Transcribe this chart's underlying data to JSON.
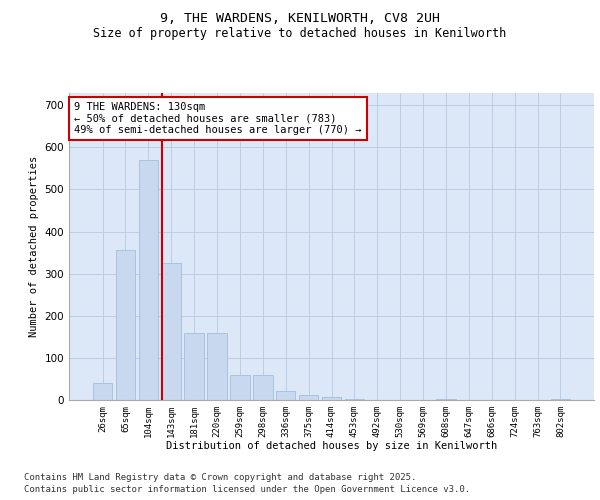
{
  "title_line1": "9, THE WARDENS, KENILWORTH, CV8 2UH",
  "title_line2": "Size of property relative to detached houses in Kenilworth",
  "xlabel": "Distribution of detached houses by size in Kenilworth",
  "ylabel": "Number of detached properties",
  "categories": [
    "26sqm",
    "65sqm",
    "104sqm",
    "143sqm",
    "181sqm",
    "220sqm",
    "259sqm",
    "298sqm",
    "336sqm",
    "375sqm",
    "414sqm",
    "453sqm",
    "492sqm",
    "530sqm",
    "569sqm",
    "608sqm",
    "647sqm",
    "686sqm",
    "724sqm",
    "763sqm",
    "802sqm"
  ],
  "values": [
    40,
    355,
    570,
    325,
    160,
    160,
    60,
    60,
    22,
    12,
    6,
    2,
    0,
    0,
    0,
    2,
    0,
    0,
    0,
    0,
    3
  ],
  "bar_color": "#c8d8ee",
  "bar_edge_color": "#99b8d8",
  "vline_x_index": 3,
  "vline_color": "#cc0000",
  "annotation_text": "9 THE WARDENS: 130sqm\n← 50% of detached houses are smaller (783)\n49% of semi-detached houses are larger (770) →",
  "annotation_box_color": "#ffffff",
  "annotation_box_edge_color": "#cc0000",
  "annotation_fontsize": 7.5,
  "grid_color": "#b8c8de",
  "background_color": "#dce8f8",
  "fig_background": "#ffffff",
  "ylim": [
    0,
    730
  ],
  "yticks": [
    0,
    100,
    200,
    300,
    400,
    500,
    600,
    700
  ],
  "footer_line1": "Contains HM Land Registry data © Crown copyright and database right 2025.",
  "footer_line2": "Contains public sector information licensed under the Open Government Licence v3.0.",
  "footer_fontsize": 6.5
}
